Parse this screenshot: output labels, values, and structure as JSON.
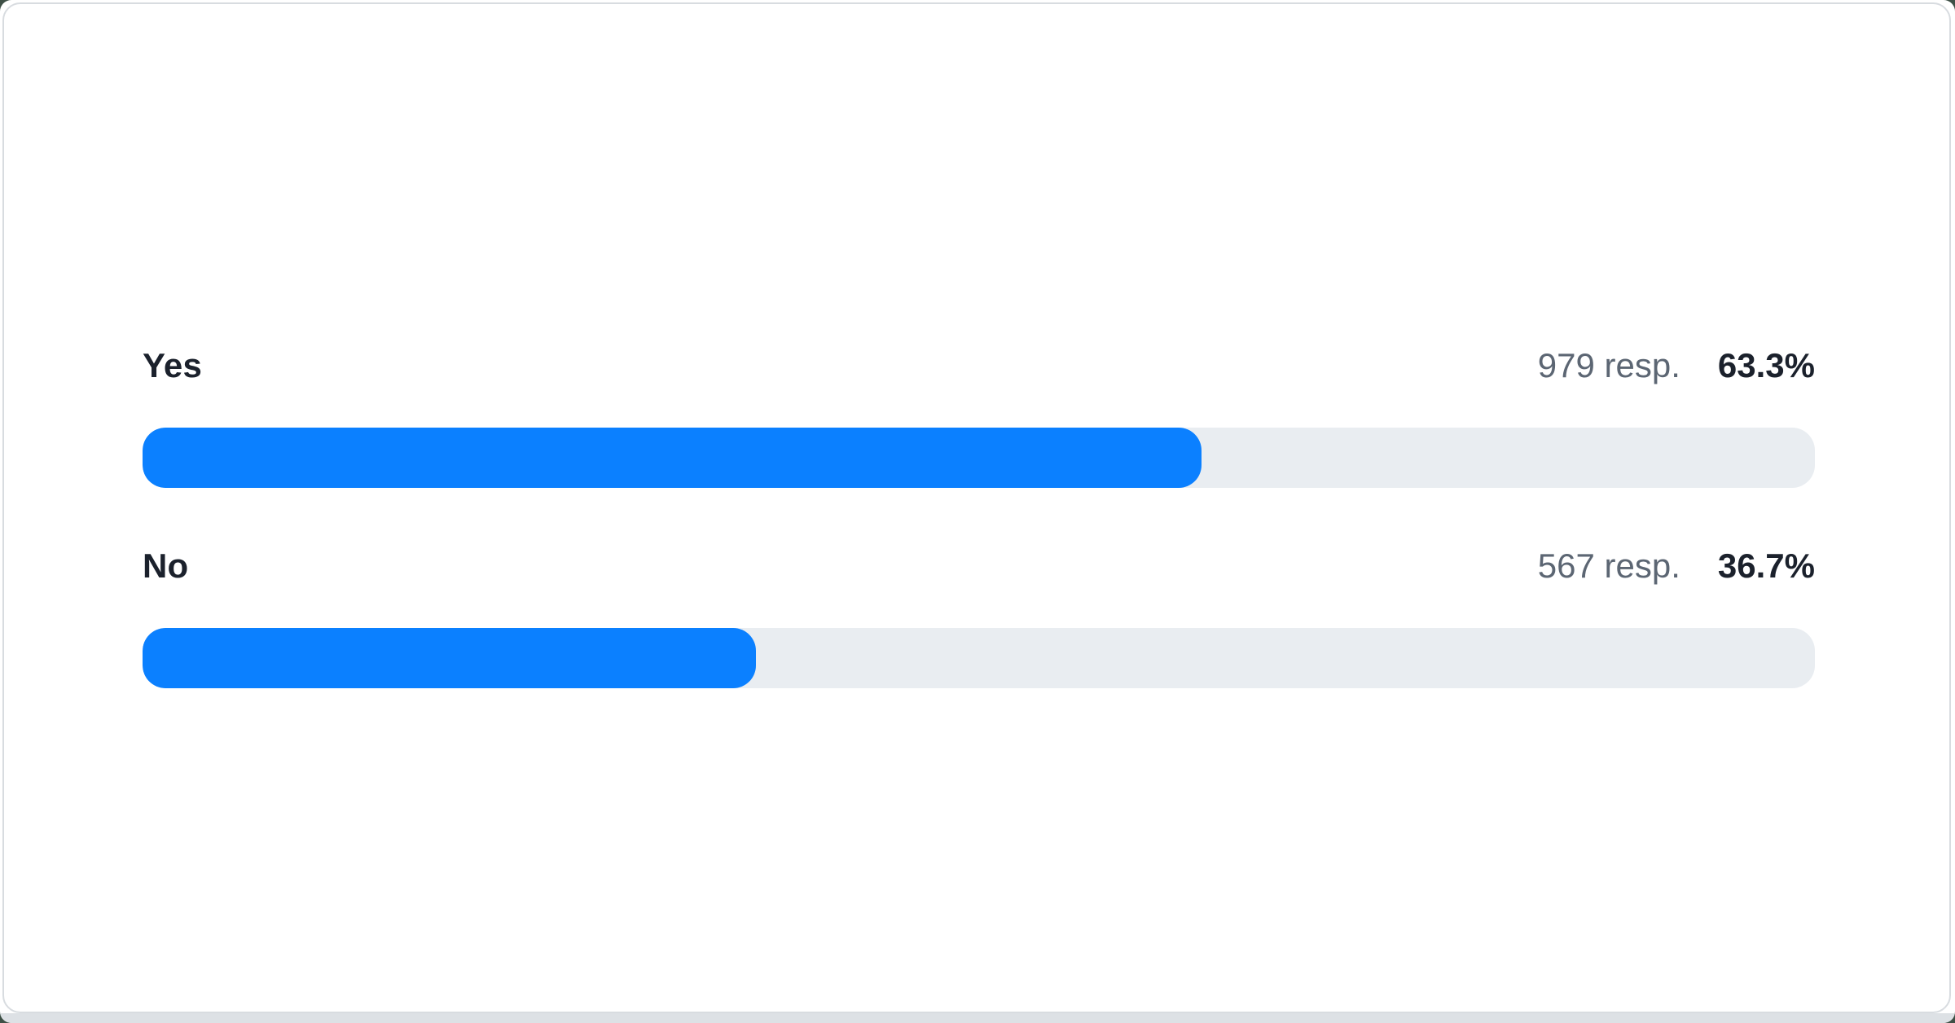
{
  "chart_data": {
    "type": "bar",
    "orientation": "horizontal",
    "title": "",
    "categories": [
      "Yes",
      "No"
    ],
    "values": [
      979,
      567
    ],
    "percents": [
      63.3,
      36.7
    ],
    "value_suffix": " resp.",
    "xlim": [
      0,
      100
    ],
    "grid": false,
    "legend": false
  },
  "poll": {
    "options": [
      {
        "label": "Yes",
        "responses": "979 resp.",
        "percent_label": "63.3%",
        "percent": 63.3
      },
      {
        "label": "No",
        "responses": "567 resp.",
        "percent_label": "36.7%",
        "percent": 36.7
      }
    ]
  },
  "colors": {
    "bar_fill": "#0b80ff",
    "bar_track": "#e9edf1",
    "label_text": "#1b212c",
    "muted_text": "#5c6673",
    "card_border": "#d8dce0",
    "page_strip": "#dde1e5",
    "backdrop": "#3e5046",
    "card_bg": "#ffffff"
  }
}
